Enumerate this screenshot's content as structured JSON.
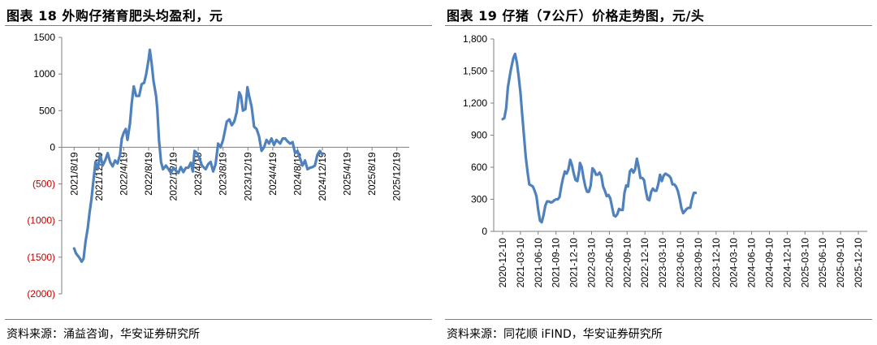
{
  "left": {
    "title": "图表 18 外购仔猪育肥头均盈利，元",
    "source": "资料来源：涌益咨询，华安证券研究所",
    "colors": {
      "line": "#4f81bd",
      "axis": "#7f7f7f",
      "negative_tick": "#c00000"
    },
    "chart_data": {
      "type": "line",
      "title": "外购仔猪育肥头均盈利，元",
      "xlabel": "",
      "ylabel": "",
      "ylim": [
        -2000,
        1500
      ],
      "yticks": [
        1500,
        1000,
        500,
        0,
        -500,
        -1000,
        -1500,
        -2000
      ],
      "ytick_labels": [
        "1500",
        "1000",
        "500",
        "0",
        "(500)",
        "(1000)",
        "(1500)",
        "(2000)"
      ],
      "xtick_labels": [
        "2021/8/19",
        "2021/12/19",
        "2022/4/19",
        "2022/8/19",
        "2022/12/19",
        "2023/4/19",
        "2023/8/19",
        "2023/12/19",
        "2024/4/19",
        "2024/8/19",
        "2024/12/19",
        "2025/4/19",
        "2025/8/19",
        "2025/12/19"
      ],
      "grid": false,
      "legend": "none",
      "series": [
        {
          "values": [
            [
              0,
              -1380
            ],
            [
              0.08,
              -1450
            ],
            [
              0.15,
              -1480
            ],
            [
              0.22,
              -1510
            ],
            [
              0.3,
              -1560
            ],
            [
              0.38,
              -1520
            ],
            [
              0.46,
              -1290
            ],
            [
              0.55,
              -1100
            ],
            [
              0.62,
              -900
            ],
            [
              0.7,
              -700
            ],
            [
              0.78,
              -450
            ],
            [
              0.86,
              -200
            ],
            [
              0.95,
              -300
            ],
            [
              1.05,
              -100
            ],
            [
              1.15,
              -250
            ],
            [
              1.25,
              -180
            ],
            [
              1.35,
              -80
            ],
            [
              1.45,
              -200
            ],
            [
              1.55,
              -260
            ],
            [
              1.65,
              -180
            ],
            [
              1.75,
              -220
            ],
            [
              1.85,
              -100
            ],
            [
              1.92,
              120
            ],
            [
              2.0,
              200
            ],
            [
              2.08,
              250
            ],
            [
              2.15,
              100
            ],
            [
              2.25,
              330
            ],
            [
              2.32,
              600
            ],
            [
              2.4,
              830
            ],
            [
              2.5,
              700
            ],
            [
              2.62,
              700
            ],
            [
              2.72,
              860
            ],
            [
              2.82,
              880
            ],
            [
              2.9,
              990
            ],
            [
              3.0,
              1200
            ],
            [
              3.05,
              1330
            ],
            [
              3.12,
              1150
            ],
            [
              3.2,
              900
            ],
            [
              3.3,
              700
            ],
            [
              3.35,
              520
            ],
            [
              3.42,
              100
            ],
            [
              3.5,
              -200
            ],
            [
              3.58,
              -300
            ],
            [
              3.7,
              -250
            ],
            [
              3.8,
              -300
            ],
            [
              3.9,
              -350
            ],
            [
              4.0,
              -280
            ],
            [
              4.1,
              -320
            ],
            [
              4.2,
              -350
            ],
            [
              4.3,
              -270
            ],
            [
              4.4,
              -340
            ],
            [
              4.5,
              -280
            ],
            [
              4.6,
              -280
            ],
            [
              4.7,
              -210
            ],
            [
              4.78,
              -330
            ],
            [
              4.85,
              -50
            ],
            [
              4.95,
              -80
            ],
            [
              5.05,
              -150
            ],
            [
              5.15,
              -250
            ],
            [
              5.3,
              -300
            ],
            [
              5.4,
              -230
            ],
            [
              5.5,
              -200
            ],
            [
              5.6,
              -330
            ],
            [
              5.7,
              -230
            ],
            [
              5.8,
              50
            ],
            [
              5.9,
              0
            ],
            [
              6.0,
              100
            ],
            [
              6.15,
              350
            ],
            [
              6.25,
              380
            ],
            [
              6.35,
              300
            ],
            [
              6.45,
              350
            ],
            [
              6.55,
              480
            ],
            [
              6.65,
              750
            ],
            [
              6.72,
              700
            ],
            [
              6.8,
              500
            ],
            [
              6.9,
              520
            ],
            [
              6.98,
              820
            ],
            [
              7.05,
              700
            ],
            [
              7.15,
              550
            ],
            [
              7.25,
              280
            ],
            [
              7.35,
              250
            ],
            [
              7.45,
              150
            ],
            [
              7.55,
              -50
            ],
            [
              7.65,
              0
            ],
            [
              7.75,
              100
            ],
            [
              7.85,
              50
            ],
            [
              7.95,
              120
            ],
            [
              8.05,
              30
            ],
            [
              8.15,
              100
            ],
            [
              8.3,
              50
            ],
            [
              8.4,
              120
            ],
            [
              8.5,
              120
            ],
            [
              8.6,
              80
            ],
            [
              8.7,
              50
            ],
            [
              8.8,
              70
            ],
            [
              8.9,
              -80
            ],
            [
              9.0,
              -50
            ],
            [
              9.1,
              -150
            ],
            [
              9.2,
              -250
            ],
            [
              9.3,
              -180
            ],
            [
              9.4,
              -300
            ],
            [
              9.5,
              -280
            ],
            [
              9.6,
              -270
            ],
            [
              9.7,
              -250
            ],
            [
              9.8,
              -100
            ],
            [
              9.9,
              -50
            ],
            [
              10.0,
              -100
            ]
          ]
        }
      ]
    }
  },
  "right": {
    "title": "图表 19 仔猪（7公斤）价格走势图，元/头",
    "source": "资料来源：同花顺 iFIND，华安证券研究所",
    "colors": {
      "line": "#4f81bd",
      "axis": "#7f7f7f"
    },
    "chart_data": {
      "type": "line",
      "title": "仔猪（7公斤）价格走势图，元/头",
      "xlabel": "",
      "ylabel": "",
      "ylim": [
        0,
        1800
      ],
      "yticks": [
        0,
        300,
        600,
        900,
        1200,
        1500,
        1800
      ],
      "ytick_labels": [
        "0",
        "300",
        "600",
        "900",
        "1,200",
        "1,500",
        "1,800"
      ],
      "xtick_labels": [
        "2020-12-10",
        "2021-03-10",
        "2021-06-10",
        "2021-09-10",
        "2021-12-10",
        "2022-03-10",
        "2022-06-10",
        "2022-09-10",
        "2022-12-10",
        "2023-03-10",
        "2023-06-10",
        "2023-09-10",
        "2023-12-10",
        "2024-03-10",
        "2024-06-10",
        "2024-09-10",
        "2024-12-10",
        "2025-03-10",
        "2025-06-10",
        "2025-09-10",
        "2025-12-10"
      ],
      "grid": false,
      "legend": "none",
      "series": [
        {
          "values": [
            [
              0,
              1050
            ],
            [
              0.1,
              1060
            ],
            [
              0.2,
              1150
            ],
            [
              0.3,
              1350
            ],
            [
              0.45,
              1500
            ],
            [
              0.6,
              1620
            ],
            [
              0.7,
              1660
            ],
            [
              0.8,
              1580
            ],
            [
              0.9,
              1450
            ],
            [
              1.0,
              1300
            ],
            [
              1.1,
              1100
            ],
            [
              1.2,
              900
            ],
            [
              1.3,
              700
            ],
            [
              1.4,
              560
            ],
            [
              1.5,
              440
            ],
            [
              1.6,
              430
            ],
            [
              1.7,
              420
            ],
            [
              1.8,
              380
            ],
            [
              1.9,
              330
            ],
            [
              2.0,
              200
            ],
            [
              2.1,
              100
            ],
            [
              2.2,
              85
            ],
            [
              2.3,
              150
            ],
            [
              2.4,
              240
            ],
            [
              2.5,
              280
            ],
            [
              2.6,
              280
            ],
            [
              2.7,
              270
            ],
            [
              2.8,
              275
            ],
            [
              2.9,
              290
            ],
            [
              3.0,
              300
            ],
            [
              3.1,
              300
            ],
            [
              3.2,
              320
            ],
            [
              3.3,
              420
            ],
            [
              3.4,
              500
            ],
            [
              3.5,
              560
            ],
            [
              3.6,
              540
            ],
            [
              3.7,
              580
            ],
            [
              3.8,
              670
            ],
            [
              3.9,
              620
            ],
            [
              4.0,
              540
            ],
            [
              4.1,
              480
            ],
            [
              4.2,
              470
            ],
            [
              4.3,
              560
            ],
            [
              4.35,
              640
            ],
            [
              4.45,
              600
            ],
            [
              4.55,
              500
            ],
            [
              4.65,
              420
            ],
            [
              4.75,
              370
            ],
            [
              4.85,
              370
            ],
            [
              4.95,
              430
            ],
            [
              5.05,
              590
            ],
            [
              5.15,
              570
            ],
            [
              5.25,
              530
            ],
            [
              5.35,
              530
            ],
            [
              5.45,
              550
            ],
            [
              5.55,
              520
            ],
            [
              5.65,
              420
            ],
            [
              5.75,
              380
            ],
            [
              5.85,
              330
            ],
            [
              5.95,
              340
            ],
            [
              6.05,
              310
            ],
            [
              6.15,
              230
            ],
            [
              6.25,
              150
            ],
            [
              6.35,
              140
            ],
            [
              6.45,
              160
            ],
            [
              6.55,
              210
            ],
            [
              6.65,
              200
            ],
            [
              6.75,
              200
            ],
            [
              6.85,
              360
            ],
            [
              6.95,
              430
            ],
            [
              7.05,
              420
            ],
            [
              7.15,
              560
            ],
            [
              7.25,
              580
            ],
            [
              7.35,
              550
            ],
            [
              7.45,
              580
            ],
            [
              7.55,
              680
            ],
            [
              7.65,
              600
            ],
            [
              7.75,
              500
            ],
            [
              7.85,
              500
            ],
            [
              7.95,
              480
            ],
            [
              8.05,
              380
            ],
            [
              8.15,
              300
            ],
            [
              8.25,
              290
            ],
            [
              8.35,
              370
            ],
            [
              8.45,
              400
            ],
            [
              8.55,
              380
            ],
            [
              8.65,
              380
            ],
            [
              8.75,
              440
            ],
            [
              8.85,
              530
            ],
            [
              8.95,
              470
            ],
            [
              9.05,
              520
            ],
            [
              9.15,
              540
            ],
            [
              9.25,
              530
            ],
            [
              9.35,
              520
            ],
            [
              9.45,
              500
            ],
            [
              9.55,
              440
            ],
            [
              9.65,
              440
            ],
            [
              9.75,
              420
            ],
            [
              9.85,
              380
            ],
            [
              9.95,
              310
            ],
            [
              10.05,
              220
            ],
            [
              10.15,
              170
            ],
            [
              10.25,
              190
            ],
            [
              10.35,
              210
            ],
            [
              10.45,
              220
            ],
            [
              10.55,
              220
            ],
            [
              10.65,
              300
            ],
            [
              10.75,
              360
            ],
            [
              10.85,
              360
            ]
          ]
        }
      ]
    }
  }
}
